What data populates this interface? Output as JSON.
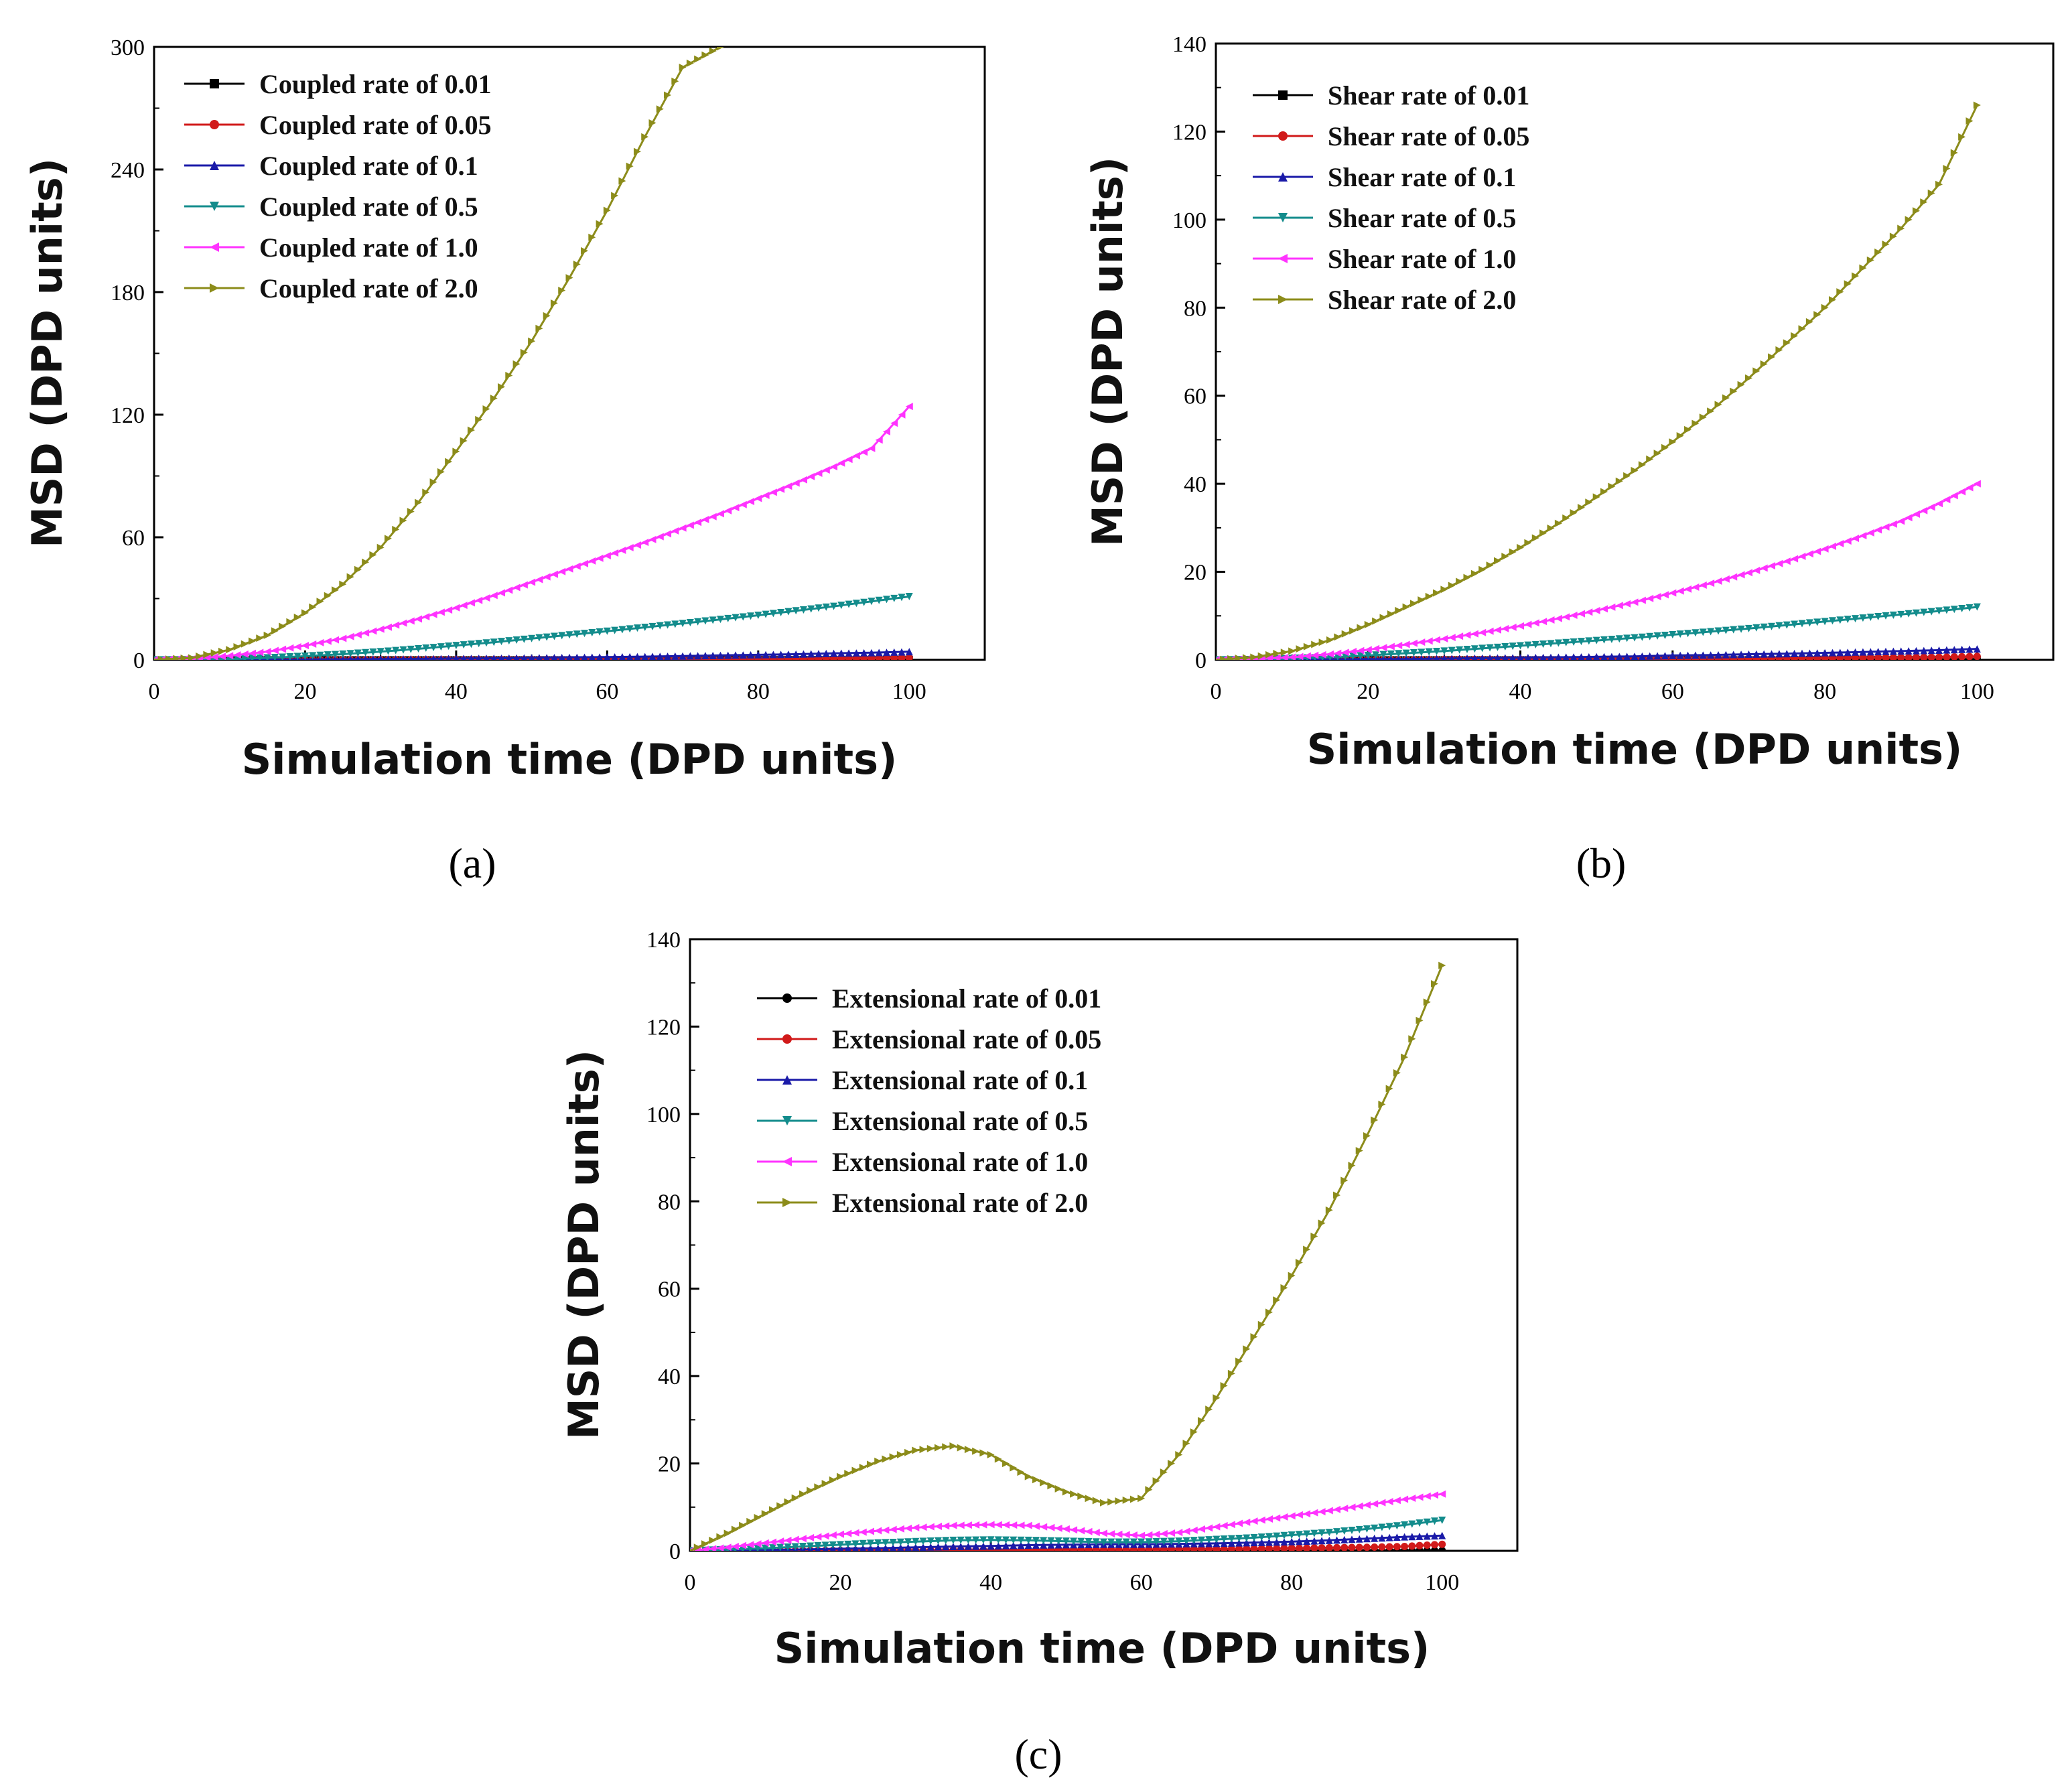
{
  "figure": {
    "panel_labels": [
      "(a)",
      "(b)",
      "(c)"
    ]
  },
  "chart_data": [
    {
      "type": "line",
      "panel": "(a)",
      "xlabel": "Simulation time (DPD units)",
      "ylabel": "MSD (DPD units)",
      "xlim": [
        0,
        110
      ],
      "ylim": [
        0,
        300
      ],
      "xticks": [
        0,
        20,
        40,
        60,
        80,
        100
      ],
      "yticks": [
        0,
        60,
        120,
        180,
        240,
        300
      ],
      "legend_position": "top-left",
      "x": [
        0,
        5,
        10,
        15,
        20,
        25,
        30,
        35,
        40,
        45,
        50,
        55,
        60,
        65,
        70,
        75,
        80,
        85,
        90,
        95,
        100
      ],
      "series": [
        {
          "name": "Coupled rate of 0.01",
          "color": "#000000",
          "marker": "square",
          "values": [
            0,
            0,
            0,
            0,
            0,
            0,
            0,
            0,
            0,
            0,
            0,
            0,
            0,
            0,
            0.1,
            0.1,
            0.1,
            0.1,
            0.1,
            0.1,
            0.2
          ]
        },
        {
          "name": "Coupled rate of 0.05",
          "color": "#d11a1a",
          "marker": "circle",
          "values": [
            0,
            0,
            0,
            0,
            0,
            0,
            0,
            0.1,
            0.1,
            0.1,
            0.2,
            0.2,
            0.3,
            0.3,
            0.4,
            0.5,
            0.6,
            0.6,
            0.7,
            0.8,
            1.0
          ]
        },
        {
          "name": "Coupled rate of 0.1",
          "color": "#1a1aa8",
          "marker": "triangle-up",
          "values": [
            0,
            0,
            0.1,
            0.1,
            0.2,
            0.3,
            0.4,
            0.5,
            0.7,
            0.8,
            1.0,
            1.2,
            1.4,
            1.6,
            1.9,
            2.2,
            2.5,
            2.8,
            3.2,
            3.5,
            4.0
          ]
        },
        {
          "name": "Coupled rate of 0.5",
          "color": "#138c8c",
          "marker": "triangle-down",
          "values": [
            0,
            0.1,
            0.4,
            1,
            1.8,
            2.8,
            4,
            5.4,
            7,
            8.6,
            10.4,
            12.2,
            14,
            15.9,
            17.8,
            19.8,
            21.8,
            24,
            26.2,
            28.6,
            31
          ]
        },
        {
          "name": "Coupled rate of 1.0",
          "color": "#ff33ff",
          "marker": "triangle-left",
          "values": [
            0,
            0.5,
            2,
            4,
            7,
            10.5,
            15,
            20,
            25.5,
            31.5,
            38,
            44.5,
            51,
            57.5,
            64.5,
            71.5,
            79,
            86.5,
            94.5,
            103.5,
            124
          ]
        },
        {
          "name": "Coupled rate of 2.0",
          "color": "#8c8c1a",
          "marker": "triangle-right",
          "values": [
            0,
            1,
            5,
            12,
            23,
            37,
            55,
            77,
            102,
            128,
            156,
            187,
            220,
            256,
            290,
            300,
            null,
            null,
            null,
            null,
            null
          ]
        }
      ]
    },
    {
      "type": "line",
      "panel": "(b)",
      "xlabel": "Simulation time (DPD units)",
      "ylabel": "MSD (DPD units)",
      "xlim": [
        0,
        110
      ],
      "ylim": [
        0,
        140
      ],
      "xticks": [
        0,
        20,
        40,
        60,
        80,
        100
      ],
      "yticks": [
        0,
        20,
        40,
        60,
        80,
        100,
        120,
        140
      ],
      "legend_position": "top-left",
      "x": [
        0,
        5,
        10,
        15,
        20,
        25,
        30,
        35,
        40,
        45,
        50,
        55,
        60,
        65,
        70,
        75,
        80,
        85,
        90,
        95,
        100
      ],
      "series": [
        {
          "name": "Shear rate of 0.01",
          "color": "#000000",
          "marker": "square",
          "values": [
            0,
            0,
            0,
            0,
            0,
            0,
            0,
            0,
            0,
            0,
            0,
            0,
            0,
            0,
            0,
            0,
            0.1,
            0.1,
            0.1,
            0.1,
            0.1
          ]
        },
        {
          "name": "Shear rate of 0.05",
          "color": "#d11a1a",
          "marker": "circle",
          "values": [
            0,
            0,
            0,
            0,
            0,
            0,
            0.1,
            0.1,
            0.1,
            0.1,
            0.2,
            0.2,
            0.3,
            0.3,
            0.3,
            0.4,
            0.4,
            0.5,
            0.5,
            0.6,
            0.8
          ]
        },
        {
          "name": "Shear rate of 0.1",
          "color": "#1a1aa8",
          "marker": "triangle-up",
          "values": [
            0,
            0,
            0.1,
            0.1,
            0.2,
            0.2,
            0.3,
            0.4,
            0.5,
            0.6,
            0.7,
            0.8,
            1.0,
            1.1,
            1.3,
            1.4,
            1.6,
            1.8,
            2.0,
            2.2,
            2.5
          ]
        },
        {
          "name": "Shear rate of 0.5",
          "color": "#138c8c",
          "marker": "triangle-down",
          "values": [
            0,
            0.1,
            0.3,
            0.6,
            1.0,
            1.5,
            2.0,
            2.6,
            3.2,
            3.8,
            4.4,
            5.0,
            5.7,
            6.4,
            7.1,
            7.9,
            8.7,
            9.5,
            10.3,
            11.1,
            12
          ]
        },
        {
          "name": "Shear rate of 1.0",
          "color": "#ff33ff",
          "marker": "triangle-left",
          "values": [
            0,
            0.2,
            0.6,
            1.3,
            2.3,
            3.5,
            4.8,
            6.2,
            7.7,
            9.4,
            11.2,
            13.1,
            15.2,
            17.4,
            19.8,
            22.4,
            25.2,
            28.2,
            31.5,
            35.5,
            40
          ]
        },
        {
          "name": "Shear rate of 2.0",
          "color": "#8c8c1a",
          "marker": "triangle-right",
          "values": [
            0,
            0.6,
            2,
            4.5,
            8,
            12,
            16,
            20.5,
            25.5,
            31,
            37,
            43,
            49.5,
            56.5,
            64,
            72,
            80,
            89,
            98,
            108,
            126
          ]
        }
      ]
    },
    {
      "type": "line",
      "panel": "(c)",
      "xlabel": "Simulation time (DPD units)",
      "ylabel": "MSD (DPD units)",
      "xlim": [
        0,
        110
      ],
      "ylim": [
        0,
        140
      ],
      "xticks": [
        0,
        20,
        40,
        60,
        80,
        100
      ],
      "yticks": [
        0,
        20,
        40,
        60,
        80,
        100,
        120,
        140
      ],
      "legend_position": "top-left",
      "x": [
        0,
        5,
        10,
        15,
        20,
        25,
        30,
        35,
        40,
        45,
        50,
        55,
        60,
        65,
        70,
        75,
        80,
        85,
        90,
        95,
        100
      ],
      "series": [
        {
          "name": "Extensional rate of 0.01",
          "color": "#000000",
          "marker": "circle",
          "values": [
            0,
            0,
            0,
            0,
            0,
            0,
            0,
            0,
            0,
            0,
            0,
            0,
            0,
            0,
            0,
            0,
            0,
            0.1,
            0.1,
            0.1,
            0.1
          ]
        },
        {
          "name": "Extensional rate of 0.05",
          "color": "#d11a1a",
          "marker": "circle",
          "values": [
            0,
            0,
            0,
            0.1,
            0.1,
            0.1,
            0.1,
            0.2,
            0.2,
            0.2,
            0.3,
            0.3,
            0.3,
            0.4,
            0.4,
            0.5,
            0.6,
            0.7,
            0.8,
            1.0,
            1.5
          ]
        },
        {
          "name": "Extensional rate of 0.1",
          "color": "#1a1aa8",
          "marker": "triangle-up",
          "values": [
            0,
            0.1,
            0.2,
            0.3,
            0.5,
            0.6,
            0.8,
            1.0,
            1.1,
            1.3,
            1.4,
            1.5,
            1.5,
            1.6,
            1.7,
            1.9,
            2.1,
            2.4,
            2.8,
            3.2,
            3.5
          ]
        },
        {
          "name": "Extensional rate of 0.5",
          "color": "#138c8c",
          "marker": "triangle-down",
          "values": [
            0,
            0.3,
            0.6,
            1.0,
            1.4,
            1.8,
            2.1,
            2.4,
            2.5,
            2.4,
            2.2,
            2.0,
            2.0,
            2.2,
            2.6,
            3.0,
            3.6,
            4.2,
            5.0,
            5.9,
            7
          ]
        },
        {
          "name": "Extensional rate of 1.0",
          "color": "#ff33ff",
          "marker": "triangle-left",
          "values": [
            0,
            0.8,
            1.8,
            2.8,
            3.8,
            4.6,
            5.3,
            5.8,
            6.0,
            5.8,
            5.0,
            4.0,
            3.5,
            4.2,
            5.5,
            6.8,
            8.0,
            9.2,
            10.5,
            11.8,
            13
          ]
        },
        {
          "name": "Extensional rate of 2.0",
          "color": "#8c8c1a",
          "marker": "triangle-right",
          "values": [
            0,
            4,
            8.5,
            13,
            17,
            20.5,
            23,
            24,
            22,
            17,
            13.5,
            11,
            12,
            22,
            35,
            49,
            63,
            78,
            95,
            113,
            134
          ]
        }
      ]
    }
  ]
}
